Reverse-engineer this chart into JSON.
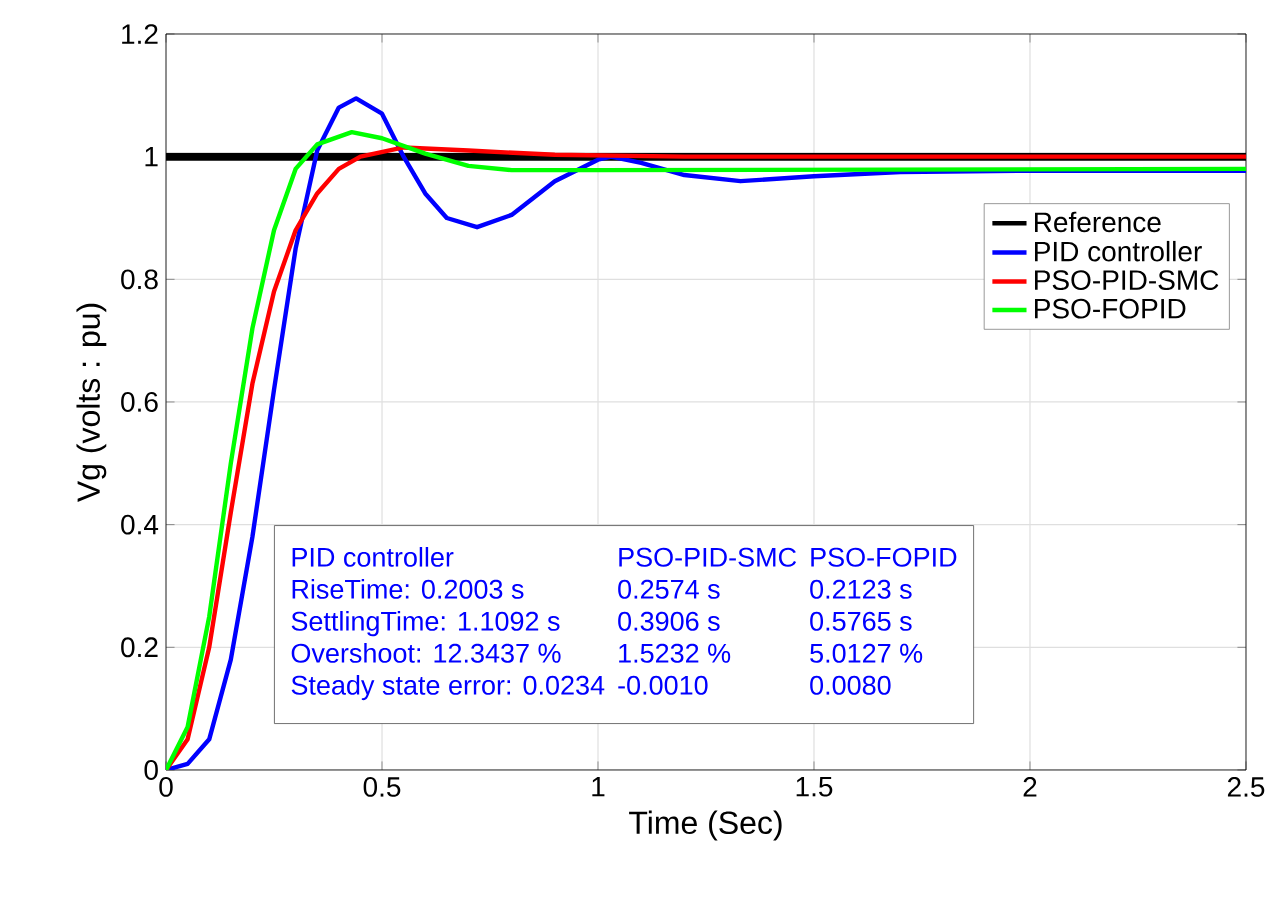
{
  "chart_data": {
    "type": "line",
    "xlabel": "Time (Sec)",
    "ylabel": "Vg (volts : pu)",
    "xlim": [
      0,
      2.5
    ],
    "ylim": [
      0,
      1.2
    ],
    "xticks": [
      0,
      0.5,
      1,
      1.5,
      2,
      2.5
    ],
    "yticks": [
      0,
      0.2,
      0.4,
      0.6,
      0.8,
      1,
      1.2
    ],
    "grid": true,
    "legend": "top right",
    "marker": "none",
    "line_style": "solid",
    "series": [
      {
        "name": "Reference",
        "color": "#000000",
        "x": [
          0,
          2.5
        ],
        "values": [
          1,
          1
        ]
      },
      {
        "name": "PID controller",
        "color": "#0000ff",
        "x": [
          0,
          0.05,
          0.1,
          0.15,
          0.2,
          0.25,
          0.3,
          0.35,
          0.4,
          0.44,
          0.5,
          0.55,
          0.6,
          0.65,
          0.72,
          0.8,
          0.9,
          1.0,
          1.03,
          1.1,
          1.2,
          1.33,
          1.5,
          1.7,
          2.0,
          2.5
        ],
        "values": [
          0,
          0.01,
          0.05,
          0.18,
          0.38,
          0.62,
          0.85,
          1.01,
          1.08,
          1.095,
          1.07,
          1.0,
          0.94,
          0.9,
          0.885,
          0.905,
          0.96,
          0.995,
          1.0,
          0.99,
          0.97,
          0.96,
          0.968,
          0.975,
          0.977,
          0.977
        ]
      },
      {
        "name": "PSO-PID-SMC",
        "color": "#ff0000",
        "x": [
          0,
          0.05,
          0.1,
          0.15,
          0.2,
          0.25,
          0.3,
          0.35,
          0.4,
          0.45,
          0.55,
          0.7,
          0.9,
          1.2,
          2.5
        ],
        "values": [
          0,
          0.05,
          0.2,
          0.42,
          0.63,
          0.78,
          0.88,
          0.94,
          0.98,
          1.0,
          1.015,
          1.01,
          1.003,
          1.0,
          1.0
        ]
      },
      {
        "name": "PSO-FOPID",
        "color": "#00ff00",
        "x": [
          0,
          0.05,
          0.1,
          0.15,
          0.2,
          0.25,
          0.3,
          0.35,
          0.43,
          0.5,
          0.6,
          0.7,
          0.8,
          1.0,
          2.5
        ],
        "values": [
          0,
          0.07,
          0.25,
          0.5,
          0.72,
          0.88,
          0.98,
          1.02,
          1.04,
          1.03,
          1.005,
          0.985,
          0.978,
          0.978,
          0.98
        ]
      }
    ],
    "annotations": [
      "PID controller",
      "PSO-PID-SMC",
      "PSO-FOPID",
      "RiseTime: 0.2003 s",
      "0.2574 s",
      "0.2123 s",
      "SettlingTime: 1.1092 s",
      "0.3906 s",
      "0.5765 s",
      "Overshoot: 12.3437 %",
      "1.5232 %",
      "5.0127 %",
      "Steady state error: 0.0234",
      "-0.0010",
      "0.0080"
    ]
  }
}
